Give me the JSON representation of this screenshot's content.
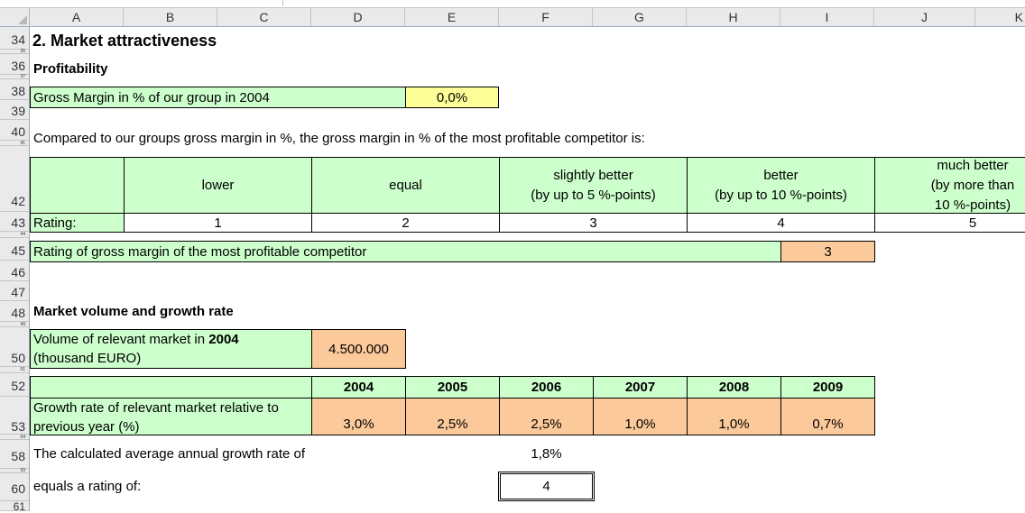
{
  "columns": [
    "A",
    "B",
    "C",
    "D",
    "E",
    "F",
    "G",
    "H",
    "I",
    "J",
    "K"
  ],
  "rows": [
    "34",
    "35",
    "36",
    "37",
    "38",
    "39",
    "40",
    "41",
    "42",
    "43",
    "44",
    "45",
    "46",
    "47",
    "48",
    "49",
    "50",
    "51",
    "52",
    "53",
    "54",
    "58",
    "59",
    "60",
    "61"
  ],
  "section_title": "2. Market attractiveness",
  "profitability": {
    "heading": "Profitability",
    "gross_margin_label": "Gross Margin in % of our group in 2004",
    "gross_margin_value": "0,0%",
    "compare_text": "Compared to our groups gross margin in %, the gross margin in % of the most profitable competitor is:",
    "scale": [
      {
        "label_1": "lower",
        "label_2": "",
        "label_3": ""
      },
      {
        "label_1": "equal",
        "label_2": "",
        "label_3": ""
      },
      {
        "label_1": "slightly better",
        "label_2": "(by up to 5 %-points)",
        "label_3": ""
      },
      {
        "label_1": "better",
        "label_2": "(by up to 10 %-points)",
        "label_3": ""
      },
      {
        "label_1": "much better",
        "label_2": "(by more than",
        "label_3": "10 %-points)"
      }
    ],
    "rating_label": "Rating:",
    "ratings": [
      "1",
      "2",
      "3",
      "4",
      "5"
    ],
    "competitor_label": "Rating of gross margin of the most profitable competitor",
    "competitor_value": "3"
  },
  "market": {
    "heading": "Market volume and growth rate",
    "volume_label_1": "Volume of relevant market in ",
    "volume_label_year": "2004",
    "volume_label_2": "(thousand EURO)",
    "volume_value": "4.500.000",
    "years": [
      "2004",
      "2005",
      "2006",
      "2007",
      "2008",
      "2009"
    ],
    "growth_label": "Growth rate of relevant market relative to previous year (%)",
    "growth_values": [
      "3,0%",
      "2,5%",
      "2,5%",
      "1,0%",
      "1,0%",
      "0,7%"
    ],
    "avg_label": "The calculated average annual growth rate of",
    "avg_value": "1,8%",
    "equals_label": "equals a rating of:",
    "equals_value": "4"
  },
  "colors": {
    "green": "#ccffcc",
    "yellow": "#ffff99",
    "orange": "#fcc99b"
  }
}
